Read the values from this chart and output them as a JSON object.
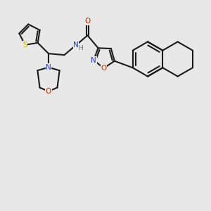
{
  "bg_color": "#e8e8e8",
  "line_color": "#1a1a1a",
  "bond_width": 1.5,
  "figsize": [
    3.0,
    3.0
  ],
  "dpi": 100,
  "colors": {
    "N": "#1e3ecf",
    "O": "#cc2200",
    "S": "#c8b800",
    "H": "#3a8a8a",
    "C": "#1a1a1a"
  }
}
